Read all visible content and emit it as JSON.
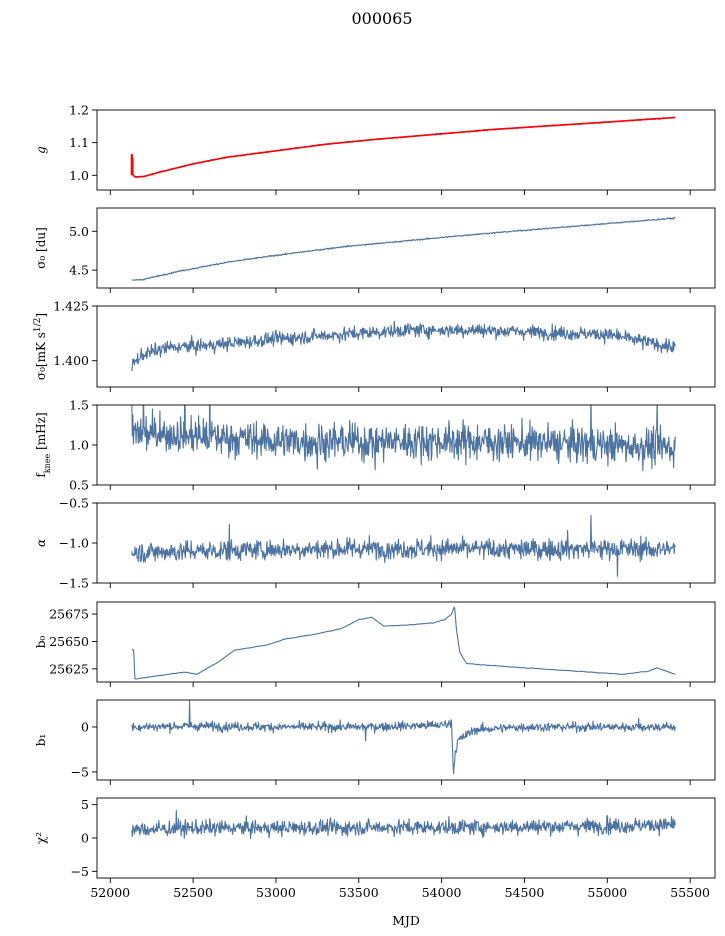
{
  "figure": {
    "title": "000065",
    "xlabel": "MJD",
    "xlim": [
      51920,
      55650
    ],
    "xticks": [
      52000,
      52500,
      53000,
      53500,
      54000,
      54500,
      55000,
      55500
    ],
    "xtick_labels": [
      "52000",
      "52500",
      "53000",
      "53500",
      "54000",
      "54500",
      "55000",
      "55500"
    ],
    "line_color": "#4c72a0",
    "fit_color": "#ff0000"
  },
  "chart_data": [
    {
      "type": "line",
      "name": "g",
      "ylabel": "g",
      "ylim": [
        0.955,
        1.2
      ],
      "yticks": [
        1.0,
        1.1,
        1.2
      ],
      "ytick_labels": [
        "1.0",
        "1.1",
        "1.2"
      ],
      "x_range": [
        52130,
        55410
      ],
      "series": [
        {
          "name": "",
          "color": "#4c72a0",
          "x": [
            52130,
            52150,
            52200,
            52300,
            52500,
            52700,
            53000,
            53300,
            53600,
            54000,
            54300,
            54600,
            55000,
            55200,
            55410
          ],
          "values": [
            1.005,
            0.995,
            0.996,
            1.01,
            1.035,
            1.055,
            1.075,
            1.095,
            1.11,
            1.127,
            1.14,
            1.15,
            1.163,
            1.17,
            1.177
          ]
        },
        {
          "name": "",
          "color": "#ff0000",
          "x": [
            52130,
            52150,
            52200,
            52300,
            52500,
            52700,
            53000,
            53300,
            53600,
            54000,
            54300,
            54600,
            55000,
            55200,
            55410
          ],
          "values": [
            1.005,
            0.995,
            0.996,
            1.01,
            1.035,
            1.055,
            1.075,
            1.095,
            1.11,
            1.127,
            1.14,
            1.15,
            1.163,
            1.17,
            1.177
          ]
        }
      ],
      "spike": {
        "x": 52130,
        "values": [
          1.0,
          1.065
        ]
      }
    },
    {
      "type": "line",
      "name": "sigma0",
      "ylabel": "σ₀ [du]",
      "ylim": [
        4.27,
        5.3
      ],
      "yticks": [
        4.5,
        5.0
      ],
      "ytick_labels": [
        "4.5",
        "5.0"
      ],
      "x_range": [
        52130,
        55410
      ],
      "series": [
        {
          "name": "",
          "x": [
            52130,
            52200,
            52400,
            52700,
            53000,
            53400,
            53800,
            54200,
            54600,
            55000,
            55410
          ],
          "values": [
            4.37,
            4.38,
            4.48,
            4.6,
            4.69,
            4.8,
            4.88,
            4.96,
            5.03,
            5.1,
            5.17
          ]
        }
      ]
    },
    {
      "type": "line",
      "name": "sigma0_mK",
      "ylabel": "σ₀[mK s^1/2]",
      "ylim": [
        1.388,
        1.425
      ],
      "yticks": [
        1.4,
        1.425
      ],
      "ytick_labels": [
        "1.400",
        "1.425"
      ],
      "x_range": [
        52130,
        55410
      ],
      "series": [
        {
          "name": "",
          "x": [
            52130,
            52200,
            52350,
            52600,
            53000,
            53400,
            53800,
            54200,
            54600,
            55000,
            55410
          ],
          "values": [
            1.398,
            1.403,
            1.406,
            1.407,
            1.41,
            1.412,
            1.414,
            1.414,
            1.413,
            1.412,
            1.406
          ]
        }
      ]
    },
    {
      "type": "line",
      "name": "fknee",
      "ylabel": "f_knee [mHz]",
      "ylim": [
        0.5,
        1.5
      ],
      "yticks": [
        0.5,
        1.0,
        1.5
      ],
      "ytick_labels": [
        "0.5",
        "1.0",
        "1.5"
      ],
      "x_range": [
        52130,
        55410
      ],
      "series": [
        {
          "name": "",
          "x": [
            52130,
            52500,
            53000,
            53500,
            54000,
            54500,
            55000,
            55410
          ],
          "values": [
            1.15,
            1.12,
            1.05,
            1.04,
            1.05,
            1.03,
            1.0,
            0.97
          ]
        }
      ]
    },
    {
      "type": "line",
      "name": "alpha",
      "ylabel": "α",
      "ylim": [
        -1.5,
        -0.5
      ],
      "yticks": [
        -1.5,
        -1.0,
        -0.5
      ],
      "ytick_labels": [
        "−1.5",
        "−1.0",
        "−0.5"
      ],
      "x_range": [
        52130,
        55410
      ],
      "series": [
        {
          "name": "",
          "x": [
            52130,
            52500,
            53000,
            53500,
            54000,
            54500,
            55000,
            55410
          ],
          "values": [
            -1.12,
            -1.1,
            -1.08,
            -1.07,
            -1.07,
            -1.08,
            -1.07,
            -1.08
          ]
        }
      ]
    },
    {
      "type": "line",
      "name": "b0",
      "ylabel": "b₀",
      "ylim": [
        25613,
        25686
      ],
      "yticks": [
        25625,
        25650,
        25675
      ],
      "ytick_labels": [
        "25625",
        "25650",
        "25675"
      ],
      "x_range": [
        52130,
        55410
      ],
      "series": [
        {
          "name": "",
          "x": [
            52130,
            52142,
            52148,
            52160,
            52250,
            52350,
            52450,
            52520,
            52650,
            52750,
            52950,
            53050,
            53250,
            53400,
            53500,
            53580,
            53650,
            53800,
            53950,
            54020,
            54060,
            54078,
            54090,
            54110,
            54150,
            54300,
            54500,
            54700,
            54900,
            55100,
            55250,
            55300,
            55410
          ],
          "values": [
            25643,
            25642,
            25616,
            25616,
            25618,
            25620,
            25622,
            25620,
            25631,
            25642,
            25647,
            25652,
            25657,
            25662,
            25670,
            25672,
            25664,
            25665,
            25667,
            25670,
            25675,
            25682,
            25660,
            25640,
            25630,
            25628,
            25626,
            25624,
            25622,
            25620,
            25623,
            25626,
            25620
          ]
        }
      ]
    },
    {
      "type": "line",
      "name": "b1",
      "ylabel": "b₁",
      "ylim": [
        -5.9,
        3.0
      ],
      "yticks": [
        -5,
        0
      ],
      "ytick_labels": [
        "−5",
        "0"
      ],
      "x_range": [
        52130,
        55410
      ],
      "series": [
        {
          "name": "",
          "x": [
            52130,
            52500,
            53000,
            53500,
            54000,
            54060,
            54072,
            54080,
            54100,
            54200,
            54500,
            55000,
            55410
          ],
          "values": [
            0.0,
            0.1,
            0.0,
            0.0,
            0.2,
            0.5,
            -5.3,
            -3.0,
            -1.5,
            -0.3,
            0.0,
            0.0,
            0.0
          ]
        }
      ]
    },
    {
      "type": "line",
      "name": "chi2",
      "ylabel": "χ²",
      "ylim": [
        -6.0,
        6.0
      ],
      "yticks": [
        -5,
        0,
        5
      ],
      "ytick_labels": [
        "−5",
        "0",
        "5"
      ],
      "x_range": [
        52130,
        55410
      ],
      "series": [
        {
          "name": "",
          "x": [
            52130,
            52500,
            53000,
            53500,
            54000,
            54500,
            55000,
            55410
          ],
          "values": [
            1.2,
            1.5,
            1.5,
            1.6,
            1.6,
            1.7,
            1.8,
            2.0
          ]
        }
      ]
    }
  ]
}
